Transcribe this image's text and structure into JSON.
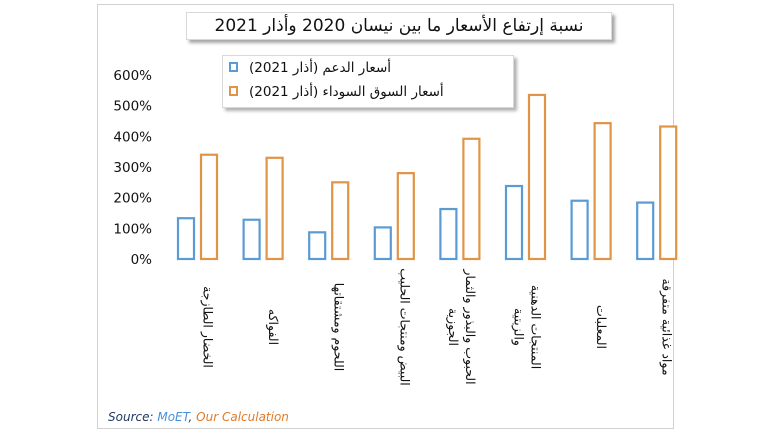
{
  "chart_data": {
    "type": "bar",
    "title": "نسبة إرتفاع الأسعار ما بين نيسان 2020 وأذار 2021",
    "categories": [
      "الخضار الطازجة",
      "الفواكه",
      "اللحوم ومشتقاتها",
      "البيض ومنتجات الحليب",
      "الحبوب والبذور والثمار الجوزية",
      "المنتجات الدهنية والزيتية",
      "المعلبات",
      "مواد غذائية متفرقة"
    ],
    "series": [
      {
        "name": "أسعار الدعم (أذار 2021)",
        "values": [
          133,
          128,
          87,
          103,
          163,
          238,
          190,
          184
        ],
        "color": "#5b9bd5"
      },
      {
        "name": "أسعار السوق السوداء (أذار 2021)",
        "values": [
          340,
          330,
          250,
          280,
          392,
          535,
          443,
          432
        ],
        "color": "#e09448"
      }
    ],
    "y_ticks": [
      "0%",
      "100%",
      "200%",
      "300%",
      "400%",
      "500%",
      "600%"
    ],
    "ylim": [
      0,
      600
    ],
    "grid": false,
    "legend_position": "top"
  },
  "source": {
    "prefix": "Source: ",
    "moet": "MoET",
    "sep": ", ",
    "calc": "Our Calculation",
    "colors": {
      "prefix": "#1f3864",
      "moet": "#4a90d9",
      "calc": "#e07b2a"
    }
  }
}
